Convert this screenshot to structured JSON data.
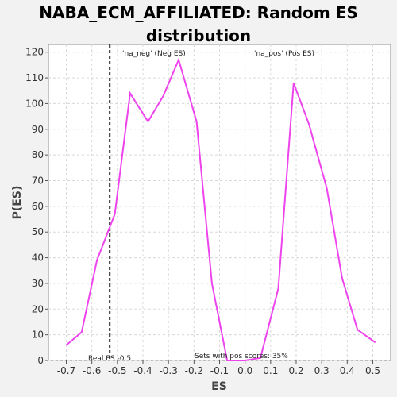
{
  "chart_data": {
    "type": "line",
    "title_line1": "NABA_ECM_AFFILIATED: Random ES",
    "title_line2": "distribution",
    "xlabel": "ES",
    "ylabel": "P(ES)",
    "xlim": [
      -0.77,
      0.57
    ],
    "ylim": [
      0,
      123
    ],
    "xticks": [
      -0.7,
      -0.6,
      -0.5,
      -0.4,
      -0.3,
      -0.2,
      -0.1,
      0.0,
      0.1,
      0.2,
      0.3,
      0.4,
      0.5
    ],
    "xtick_labels": [
      "-0.7",
      "-0.6",
      "-0.5",
      "-0.4",
      "-0.3",
      "-0.2",
      "-0.1",
      "0.0",
      "0.1",
      "0.2",
      "0.3",
      "0.4",
      "0.5"
    ],
    "yticks": [
      0,
      10,
      20,
      30,
      40,
      50,
      60,
      70,
      80,
      90,
      100,
      110,
      120
    ],
    "grid": true,
    "series": [
      {
        "color": "#ee44ee",
        "x": [
          -0.7,
          -0.64,
          -0.58,
          -0.51,
          -0.45,
          -0.38,
          -0.32,
          -0.26,
          -0.19,
          -0.13,
          -0.07,
          0.0,
          0.06,
          0.13,
          0.19,
          0.25,
          0.32,
          0.38,
          0.44,
          0.51
        ],
        "y": [
          6,
          11,
          39,
          57,
          104,
          93,
          103,
          117,
          93,
          30,
          0,
          0,
          1,
          28,
          108,
          92,
          67,
          32,
          12,
          7
        ]
      }
    ],
    "real_es": -0.53,
    "annotations": {
      "neg_label": "'na_neg' (Neg ES)",
      "neg_color": "#2222dd",
      "pos_label": "'na_pos' (Pos ES)",
      "pos_color": "#dd2222",
      "real_es_label": "Real ES -0.5",
      "pos_scores_label": "Sets with pos scores: 35%"
    }
  }
}
